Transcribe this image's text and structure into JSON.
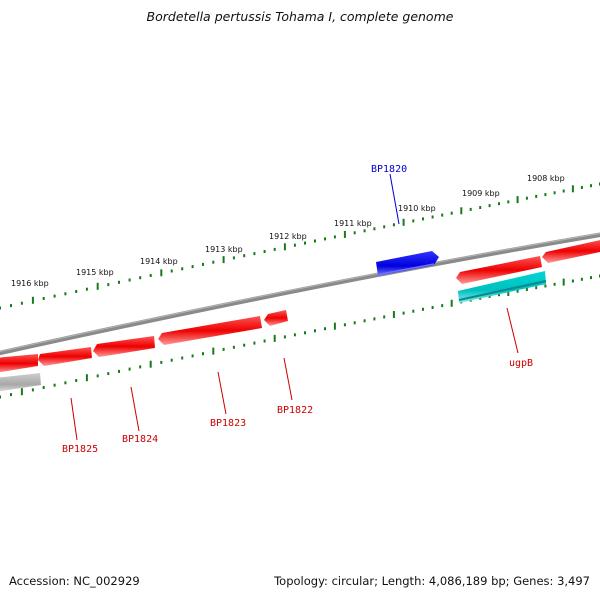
{
  "title": "Bordetella pertussis Tohama I, complete genome",
  "footer": {
    "accession": "Accession: NC_002929",
    "summary": "Topology: circular; Length: 4,086,189 bp; Genes: 3,497"
  },
  "colors": {
    "forward_gene": "#0000ee",
    "reverse_gene": "#ee0000",
    "rna_gene": "#00cccc",
    "other_gene": "#aaaaaa",
    "backbone": "#7a7a7a",
    "tick": "#1a7a1a"
  },
  "tick_labels": [
    "1916 kbp",
    "1915 kbp",
    "1914 kbp",
    "1913 kbp",
    "1912 kbp",
    "1911 kbp",
    "1910 kbp",
    "1909 kbp",
    "1908 kbp"
  ],
  "gene_labels": [
    {
      "name": "BP1820",
      "strand": "forward"
    },
    {
      "name": "BP1825",
      "strand": "reverse"
    },
    {
      "name": "BP1824",
      "strand": "reverse"
    },
    {
      "name": "BP1823",
      "strand": "reverse"
    },
    {
      "name": "BP1822",
      "strand": "reverse"
    },
    {
      "name": "ugpB",
      "strand": "reverse"
    }
  ]
}
